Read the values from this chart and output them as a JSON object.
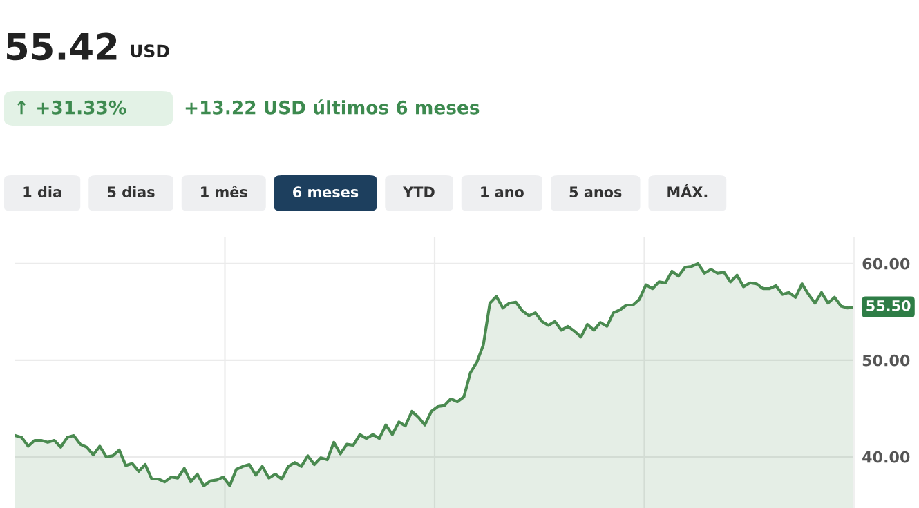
{
  "chart_data": {
    "type": "area",
    "title": "55.42",
    "subtitle": "USD",
    "annotations": [
      "↑ +31.33%",
      "+13.22 USD últimos 6 meses",
      "1 dia",
      "5 dias",
      "1 mês",
      "6 meses",
      "YTD",
      "1 ano",
      "5 anos",
      "MÁX.",
      "55.50"
    ],
    "categories": [
      null,
      null,
      null,
      null,
      null,
      null,
      null,
      null,
      null,
      null,
      null,
      null,
      null,
      null,
      null,
      null,
      null,
      null,
      null,
      null,
      null,
      null,
      null,
      null,
      null,
      null,
      null,
      null,
      null,
      null,
      null,
      null,
      null,
      null,
      null,
      null,
      null,
      null,
      null,
      null,
      null,
      null,
      null,
      null,
      null,
      null,
      null,
      null,
      null,
      null,
      null,
      null,
      null,
      null,
      null,
      null,
      null,
      null,
      null,
      null,
      null,
      null,
      null,
      null,
      null,
      null,
      null,
      null,
      null,
      null,
      null,
      null,
      null,
      null,
      null,
      null,
      null,
      null,
      null,
      null,
      null,
      null,
      null,
      null,
      null,
      null,
      null,
      null,
      null,
      null,
      null,
      null,
      null,
      null,
      null,
      null,
      null,
      null,
      null,
      null,
      null,
      null,
      null,
      null,
      null,
      null,
      null,
      null,
      null,
      null,
      null,
      null,
      null,
      null,
      null,
      null,
      null,
      null,
      null,
      null,
      null,
      null,
      null,
      null,
      null,
      null,
      null,
      null,
      null,
      null
    ],
    "series": [
      {
        "color": "#4a8a50",
        "values": [
          42.2,
          42.0,
          41.1,
          41.7,
          41.7,
          41.5,
          41.7,
          41.0,
          42.0,
          42.2,
          41.3,
          41.0,
          40.2,
          41.1,
          40.0,
          40.1,
          40.7,
          39.1,
          39.3,
          38.5,
          39.2,
          37.7,
          37.7,
          37.4,
          37.9,
          37.8,
          38.8,
          37.4,
          38.2,
          37.0,
          37.5,
          37.6,
          37.9,
          37.0,
          38.7,
          39.0,
          39.2,
          38.1,
          39.0,
          37.8,
          38.2,
          37.7,
          39.0,
          39.4,
          39.0,
          40.1,
          39.2,
          39.9,
          39.7,
          41.5,
          40.3,
          41.3,
          41.2,
          42.3,
          41.9,
          42.3,
          41.9,
          43.3,
          42.3,
          43.6,
          43.2,
          44.7,
          44.1,
          43.3,
          44.7,
          45.2,
          45.3,
          46.0,
          45.7,
          46.2,
          48.7,
          49.8,
          51.6,
          55.9,
          56.6,
          55.4,
          55.9,
          56.0,
          55.1,
          54.6,
          54.9,
          54.0,
          53.6,
          54.0,
          53.1,
          53.5,
          53.0,
          52.4,
          53.7,
          53.1,
          53.9,
          53.5,
          54.9,
          55.2,
          55.7,
          55.7,
          56.3,
          57.8,
          57.4,
          58.1,
          58.0,
          59.2,
          58.7,
          59.6,
          59.7,
          60.0,
          59.0,
          59.4,
          59.0,
          59.1,
          58.1,
          58.8,
          57.6,
          58.0,
          57.9,
          57.4,
          57.4,
          57.7,
          56.8,
          57.0,
          56.5,
          57.9,
          56.8,
          55.9,
          57.0,
          55.9,
          56.5,
          55.6,
          55.4,
          55.5
        ]
      }
    ],
    "ylim": [
      34.7,
      62.7
    ],
    "yticks": [
      {
        "value": 40,
        "label": "40.00"
      },
      {
        "value": 50,
        "label": "50.00"
      },
      {
        "value": 60,
        "label": "60.00"
      }
    ],
    "grid": true,
    "tick_labels": "y"
  }
}
